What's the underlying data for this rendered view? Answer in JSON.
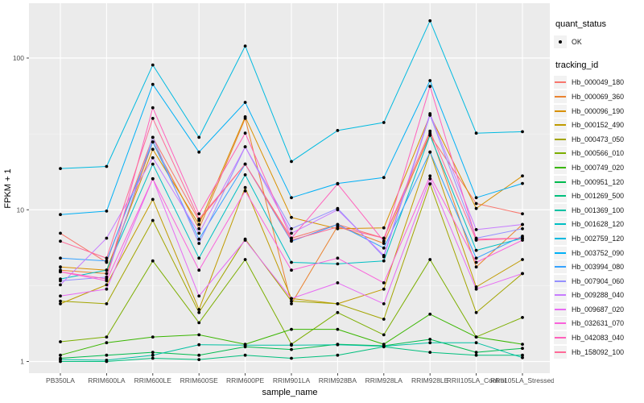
{
  "chart_data": {
    "type": "line",
    "title": "",
    "xlabel": "sample_name",
    "ylabel": "FPKM + 1",
    "y_scale": "log10",
    "y_ticks": [
      1,
      10,
      100
    ],
    "y_minor_ticks": [
      3.1623,
      31.623
    ],
    "ylim": [
      1,
      200
    ],
    "grid": "on",
    "panel_bg": "#EBEBEB",
    "grid_color": "#FFFFFF",
    "tick_label_color": "#4D4D4D",
    "point_color": "#000000",
    "legend_position": "right",
    "categories": [
      "PB350LA",
      "RRIM600LA",
      "RRIM600LE",
      "RRIM600SE",
      "RRIM600PE",
      "RRIM901LA",
      "RRIM928BA",
      "RRIM928LA",
      "RRIM928LE",
      "RRII105LA_Control",
      "RRII105LA_Stressed"
    ],
    "series": [
      {
        "name": "Hb_000049_180",
        "color": "#F8766D",
        "values": [
          7.0,
          4.5,
          30,
          8.5,
          20,
          6.5,
          8.0,
          6.5,
          31,
          11.0,
          9.4
        ]
      },
      {
        "name": "Hb_000069_360",
        "color": "#EA8331",
        "values": [
          4.0,
          3.8,
          28,
          7.5,
          40,
          2.4,
          7.8,
          6.0,
          32,
          4.2,
          8.0
        ]
      },
      {
        "name": "Hb_000096_190",
        "color": "#D89000",
        "values": [
          4.2,
          4.0,
          25,
          8.0,
          41,
          8.9,
          7.5,
          7.6,
          42,
          10.2,
          16.7
        ]
      },
      {
        "name": "Hb_000152_490",
        "color": "#C09B00",
        "values": [
          2.4,
          3.2,
          11.7,
          2.2,
          14,
          2.6,
          2.4,
          3.0,
          24,
          3.1,
          4.7
        ]
      },
      {
        "name": "Hb_000473_050",
        "color": "#A3A500",
        "values": [
          2.5,
          2.4,
          8.5,
          2.1,
          6.4,
          2.5,
          2.4,
          1.9,
          14.8,
          2.1,
          3.8
        ]
      },
      {
        "name": "Hb_000566_010",
        "color": "#7CAE00",
        "values": [
          1.35,
          1.45,
          4.6,
          1.8,
          4.7,
          1.3,
          2.1,
          1.5,
          4.7,
          1.45,
          1.95
        ]
      },
      {
        "name": "Hb_000749_020",
        "color": "#39B600",
        "values": [
          1.1,
          1.33,
          1.45,
          1.5,
          1.3,
          1.63,
          1.63,
          1.3,
          2.05,
          1.45,
          1.3
        ]
      },
      {
        "name": "Hb_000951_120",
        "color": "#00BB4E",
        "values": [
          1.05,
          1.1,
          1.15,
          1.1,
          1.25,
          1.2,
          1.3,
          1.27,
          1.4,
          1.15,
          1.22
        ]
      },
      {
        "name": "Hb_001269_500",
        "color": "#00BF7D",
        "values": [
          1.0,
          1.0,
          1.05,
          1.03,
          1.1,
          1.05,
          1.1,
          1.25,
          1.15,
          1.1,
          1.1
        ]
      },
      {
        "name": "Hb_001369_100",
        "color": "#00C1A3",
        "values": [
          1.03,
          1.02,
          1.1,
          1.29,
          1.28,
          1.28,
          1.29,
          1.26,
          1.33,
          1.33,
          1.06
        ]
      },
      {
        "name": "Hb_001628_120",
        "color": "#00BFC4",
        "values": [
          3.5,
          4.0,
          20,
          4.8,
          17,
          4.5,
          4.4,
          4.6,
          31,
          5.4,
          6.5
        ]
      },
      {
        "name": "Hb_002759_120",
        "color": "#00BAE0",
        "values": [
          18.7,
          19.3,
          90,
          30,
          120,
          20.8,
          33.3,
          37.6,
          176,
          32,
          32.7
        ]
      },
      {
        "name": "Hb_003752_090",
        "color": "#00B0F6",
        "values": [
          9.3,
          9.8,
          67,
          24,
          51,
          12.0,
          14.9,
          16.3,
          71,
          12.0,
          14.9
        ]
      },
      {
        "name": "Hb_003994_080",
        "color": "#35A2FF",
        "values": [
          4.8,
          4.6,
          28,
          6.4,
          20,
          6.2,
          8.0,
          5.6,
          24,
          4.8,
          6.7
        ]
      },
      {
        "name": "Hb_007904_060",
        "color": "#9590FF",
        "values": [
          3.4,
          3.6,
          30,
          6.0,
          26,
          7.5,
          10.2,
          4.9,
          42,
          6.5,
          7.5
        ]
      },
      {
        "name": "Hb_009288_040",
        "color": "#C77CFF",
        "values": [
          3.2,
          6.5,
          22,
          7.0,
          26,
          7.0,
          10.0,
          5.0,
          43,
          7.4,
          8.0
        ]
      },
      {
        "name": "Hb_009687_020",
        "color": "#E76BF3",
        "values": [
          2.7,
          3.0,
          16,
          2.7,
          6.3,
          2.6,
          3.3,
          2.4,
          16,
          3.0,
          3.8
        ]
      },
      {
        "name": "Hb_032631_070",
        "color": "#FA62DB",
        "values": [
          3.9,
          3.4,
          16,
          4.0,
          13.3,
          4.0,
          4.8,
          3.3,
          16.7,
          4.5,
          6.3
        ]
      },
      {
        "name": "Hb_042083_040",
        "color": "#FF62BC",
        "values": [
          3.9,
          3.5,
          47,
          9.4,
          32,
          6.5,
          14.8,
          6.2,
          65,
          6.4,
          6.5
        ]
      },
      {
        "name": "Hb_158092_100",
        "color": "#FF6A98",
        "values": [
          6.2,
          4.8,
          40,
          8.7,
          20,
          6.3,
          7.7,
          6.5,
          33,
          6.3,
          6.5
        ]
      }
    ],
    "legend": {
      "quant_status_title": "quant_status",
      "quant_status_items": [
        "OK"
      ],
      "tracking_id_title": "tracking_id"
    }
  }
}
